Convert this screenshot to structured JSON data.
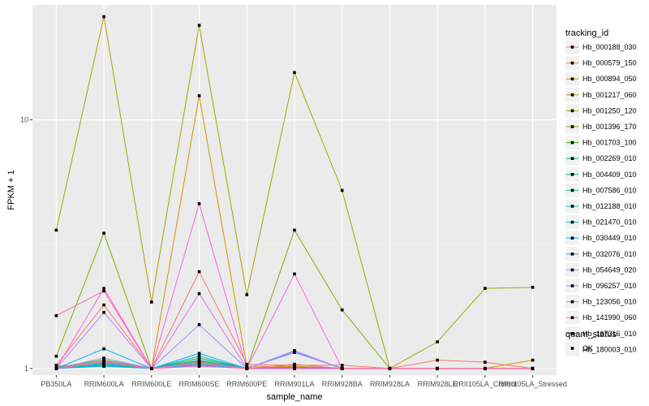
{
  "chart_data": {
    "type": "line",
    "title": "",
    "xlabel": "sample_name",
    "ylabel": "FPKM + 1",
    "yscale": "log10",
    "ylim": [
      0.94,
      29
    ],
    "yticks": [
      1,
      10
    ],
    "grid": true,
    "legend_placement": "right",
    "categories": [
      "PB350LA",
      "RRIM600LA",
      "RRIM600LE",
      "RRIM600SE",
      "RRIM600PE",
      "RRIM901LA",
      "RRIM928BA",
      "RRIM928LA",
      "RRIM928LE",
      "RRII105LA_Control",
      "RRII105LA_Stressed"
    ],
    "legend_title": "tracking_id",
    "series": [
      {
        "name": "Hb_000188_030",
        "color": "#F8766D",
        "values": [
          1.03,
          1.8,
          1.0,
          2.45,
          1.04,
          1.03,
          1.03,
          1.0,
          1.08,
          1.06,
          1.0
        ]
      },
      {
        "name": "Hb_000579_150",
        "color": "#EA8331",
        "values": [
          1.0,
          1.1,
          1.0,
          1.08,
          1.0,
          1.02,
          1.0,
          1.0,
          1.0,
          1.0,
          1.0
        ]
      },
      {
        "name": "Hb_000894_050",
        "color": "#D89000",
        "values": [
          1.02,
          1.05,
          1.0,
          12.5,
          1.02,
          1.02,
          1.0,
          1.0,
          1.0,
          1.0,
          1.08
        ]
      },
      {
        "name": "Hb_001217_060",
        "color": "#C09B00",
        "values": [
          1.0,
          1.03,
          1.0,
          1.05,
          1.0,
          1.01,
          1.0,
          1.0,
          1.0,
          1.0,
          1.0
        ]
      },
      {
        "name": "Hb_001250_120",
        "color": "#A3A500",
        "values": [
          3.6,
          26,
          1.85,
          24,
          1.98,
          15.5,
          5.2,
          1.0,
          1.28,
          2.1,
          2.12
        ]
      },
      {
        "name": "Hb_001396_170",
        "color": "#7CAE00",
        "values": [
          1.12,
          3.5,
          1.0,
          1.05,
          1.0,
          3.6,
          1.72,
          1.0,
          1.0,
          1.0,
          1.0
        ]
      },
      {
        "name": "Hb_001703_100",
        "color": "#39B600",
        "values": [
          1.01,
          1.08,
          1.0,
          1.07,
          1.0,
          1.01,
          1.0,
          1.0,
          1.0,
          1.0,
          1.0
        ]
      },
      {
        "name": "Hb_002269_010",
        "color": "#00BB4E",
        "values": [
          1.0,
          1.06,
          1.0,
          1.1,
          1.0,
          1.0,
          1.0,
          1.0,
          1.0,
          1.0,
          1.0
        ]
      },
      {
        "name": "Hb_004409_010",
        "color": "#00BF7D",
        "values": [
          1.0,
          1.04,
          1.0,
          1.06,
          1.0,
          1.0,
          1.0,
          1.0,
          1.0,
          1.0,
          1.0
        ]
      },
      {
        "name": "Hb_007586_010",
        "color": "#00C1A3",
        "values": [
          1.0,
          1.03,
          1.0,
          1.04,
          1.0,
          1.0,
          1.0,
          1.0,
          1.0,
          1.0,
          1.0
        ]
      },
      {
        "name": "Hb_012188_010",
        "color": "#00BFC4",
        "values": [
          1.0,
          1.02,
          1.0,
          1.12,
          1.0,
          1.0,
          1.0,
          1.0,
          1.0,
          1.0,
          1.0
        ]
      },
      {
        "name": "Hb_021470_010",
        "color": "#00BAE0",
        "values": [
          1.0,
          1.05,
          1.0,
          1.08,
          1.0,
          1.01,
          1.0,
          1.0,
          1.0,
          1.0,
          1.0
        ]
      },
      {
        "name": "Hb_030449_010",
        "color": "#00B0F6",
        "values": [
          1.0,
          1.2,
          1.0,
          1.15,
          1.0,
          1.0,
          1.0,
          1.0,
          1.0,
          1.0,
          1.0
        ]
      },
      {
        "name": "Hb_032076_010",
        "color": "#35A2FF",
        "values": [
          1.0,
          1.02,
          1.0,
          1.03,
          1.0,
          1.16,
          1.0,
          1.0,
          1.0,
          1.0,
          1.0
        ]
      },
      {
        "name": "Hb_054649_020",
        "color": "#9590FF",
        "values": [
          1.0,
          1.1,
          1.0,
          1.5,
          1.0,
          1.18,
          1.0,
          1.0,
          1.0,
          1.0,
          1.0
        ]
      },
      {
        "name": "Hb_096257_010",
        "color": "#C77CFF",
        "values": [
          1.0,
          1.68,
          1.0,
          1.05,
          1.0,
          1.17,
          1.0,
          1.0,
          1.0,
          1.0,
          1.0
        ]
      },
      {
        "name": "Hb_123056_010",
        "color": "#E76BF3",
        "values": [
          1.0,
          1.06,
          1.0,
          2.0,
          1.0,
          1.0,
          1.0,
          1.0,
          1.0,
          1.0,
          1.0
        ]
      },
      {
        "name": "Hb_141990_060",
        "color": "#FA62DB",
        "values": [
          1.0,
          2.1,
          1.0,
          4.6,
          1.0,
          2.4,
          1.0,
          1.0,
          1.0,
          1.0,
          1.0
        ]
      },
      {
        "name": "Hb_167316_010",
        "color": "#FF62BC",
        "values": [
          1.63,
          2.05,
          1.0,
          1.02,
          1.0,
          1.0,
          1.0,
          1.0,
          1.0,
          1.0,
          1.0
        ]
      },
      {
        "name": "Hb_180003_010",
        "color": "#FF6C91",
        "values": [
          1.0,
          1.07,
          1.0,
          1.06,
          1.0,
          1.04,
          1.0,
          1.0,
          1.0,
          1.0,
          1.0
        ]
      }
    ],
    "shape_legend": {
      "title": "quant_status",
      "entries": [
        "OK"
      ]
    }
  },
  "colors": {
    "panel": "#EBEBEB",
    "grid_major": "#FFFFFF",
    "grid_minor": "#F2F2F2",
    "point": "#000000"
  }
}
